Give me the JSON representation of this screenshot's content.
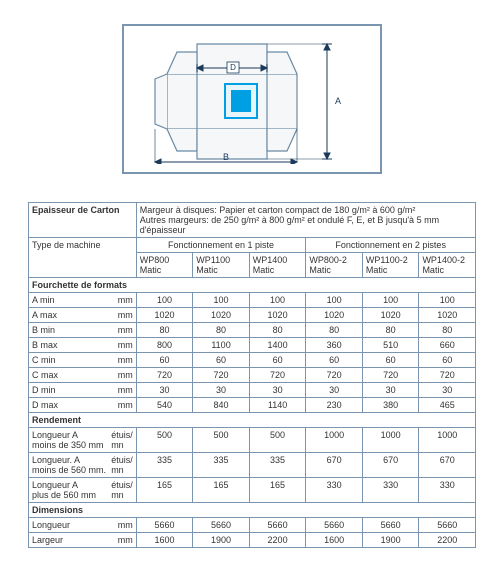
{
  "diagram": {
    "label_d": "D",
    "label_a": "A",
    "label_b": "B"
  },
  "epaisseur": {
    "label": "Epaisseur de Carton",
    "text": "Margeur à disques: Papier et carton compact de 180 g/m² à 600 g/m²\nAutres margeurs: de 250 g/m² à 800 g/m² et ondulé F, E, et B jusqu'à 5 mm d'épaisseur"
  },
  "type_machine_label": "Type de machine",
  "groups": [
    "Fonctionnement en 1 piste",
    "Fonctionnement en 2 pistes"
  ],
  "models": [
    "WP800 Matic",
    "WP1100 Matic",
    "WP1400 Matic",
    "WP800-2 Matic",
    "WP1100-2 Matic",
    "WP1400-2 Matic"
  ],
  "sections": [
    {
      "title": "Fourchette de formats",
      "rows": [
        {
          "label": "A min",
          "unit": "mm",
          "vals": [
            "100",
            "100",
            "100",
            "100",
            "100",
            "100"
          ]
        },
        {
          "label": "A max",
          "unit": "mm",
          "vals": [
            "1020",
            "1020",
            "1020",
            "1020",
            "1020",
            "1020"
          ]
        },
        {
          "label": "B min",
          "unit": "mm",
          "vals": [
            "80",
            "80",
            "80",
            "80",
            "80",
            "80"
          ]
        },
        {
          "label": "B max",
          "unit": "mm",
          "vals": [
            "800",
            "1100",
            "1400",
            "360",
            "510",
            "660"
          ]
        },
        {
          "label": "C min",
          "unit": "mm",
          "vals": [
            "60",
            "60",
            "60",
            "60",
            "60",
            "60"
          ]
        },
        {
          "label": "C max",
          "unit": "mm",
          "vals": [
            "720",
            "720",
            "720",
            "720",
            "720",
            "720"
          ]
        },
        {
          "label": "D min",
          "unit": "mm",
          "vals": [
            "30",
            "30",
            "30",
            "30",
            "30",
            "30"
          ]
        },
        {
          "label": "D max",
          "unit": "mm",
          "vals": [
            "540",
            "840",
            "1140",
            "230",
            "380",
            "465"
          ]
        }
      ]
    },
    {
      "title": "Rendement",
      "rows": [
        {
          "label": "Longueur A\nmoins de 350 mm",
          "unit": "étuis/\nmn",
          "vals": [
            "500",
            "500",
            "500",
            "1000",
            "1000",
            "1000"
          ]
        },
        {
          "label": "Longueur. A\nmoins de 560 mm.",
          "unit": "étuis/\nmn",
          "vals": [
            "335",
            "335",
            "335",
            "670",
            "670",
            "670"
          ]
        },
        {
          "label": "Longueur A\nplus de 560 mm",
          "unit": "étuis/\nmn",
          "vals": [
            "165",
            "165",
            "165",
            "330",
            "330",
            "330"
          ]
        }
      ]
    },
    {
      "title": "Dimensions",
      "rows": [
        {
          "label": "Longueur",
          "unit": "mm",
          "vals": [
            "5660",
            "5660",
            "5660",
            "5660",
            "5660",
            "5660"
          ]
        },
        {
          "label": "Largeur",
          "unit": "mm",
          "vals": [
            "1600",
            "1900",
            "2200",
            "1600",
            "1900",
            "2200"
          ]
        }
      ]
    }
  ],
  "colors": {
    "border": "#7a95b0",
    "accent": "#009fe3",
    "fill": "#f5f7f8"
  }
}
